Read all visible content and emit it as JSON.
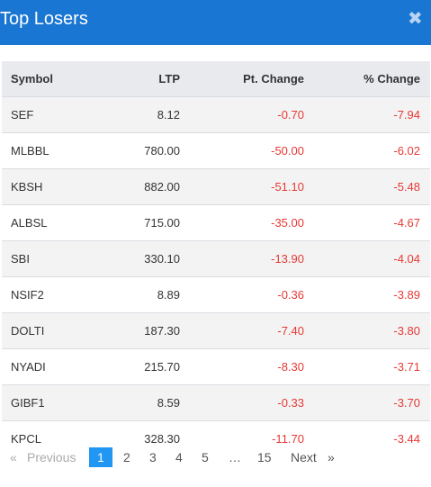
{
  "header": {
    "title": "Top Losers",
    "close_glyph": "✖"
  },
  "table": {
    "columns": [
      "Symbol",
      "LTP",
      "Pt. Change",
      "% Change"
    ],
    "rows": [
      {
        "symbol": "SEF",
        "ltp": "8.12",
        "pt_change": "-0.70",
        "pct_change": "-7.94"
      },
      {
        "symbol": "MLBBL",
        "ltp": "780.00",
        "pt_change": "-50.00",
        "pct_change": "-6.02"
      },
      {
        "symbol": "KBSH",
        "ltp": "882.00",
        "pt_change": "-51.10",
        "pct_change": "-5.48"
      },
      {
        "symbol": "ALBSL",
        "ltp": "715.00",
        "pt_change": "-35.00",
        "pct_change": "-4.67"
      },
      {
        "symbol": "SBI",
        "ltp": "330.10",
        "pt_change": "-13.90",
        "pct_change": "-4.04"
      },
      {
        "symbol": "NSIF2",
        "ltp": "8.89",
        "pt_change": "-0.36",
        "pct_change": "-3.89"
      },
      {
        "symbol": "DOLTI",
        "ltp": "187.30",
        "pt_change": "-7.40",
        "pct_change": "-3.80"
      },
      {
        "symbol": "NYADI",
        "ltp": "215.70",
        "pt_change": "-8.30",
        "pct_change": "-3.71"
      },
      {
        "symbol": "GIBF1",
        "ltp": "8.59",
        "pt_change": "-0.33",
        "pct_change": "-3.70"
      },
      {
        "symbol": "KPCL",
        "ltp": "328.30",
        "pt_change": "-11.70",
        "pct_change": "-3.44"
      }
    ]
  },
  "pagination": {
    "prev_arrow": "«",
    "prev_label": "Previous",
    "pages": [
      "1",
      "2",
      "3",
      "4",
      "5",
      "…",
      "15"
    ],
    "active_page": "1",
    "next_label": "Next",
    "next_arrow": "»"
  },
  "colors": {
    "header_bg": "#1976d2",
    "negative": "#e53935",
    "active_page_bg": "#2196f3"
  }
}
